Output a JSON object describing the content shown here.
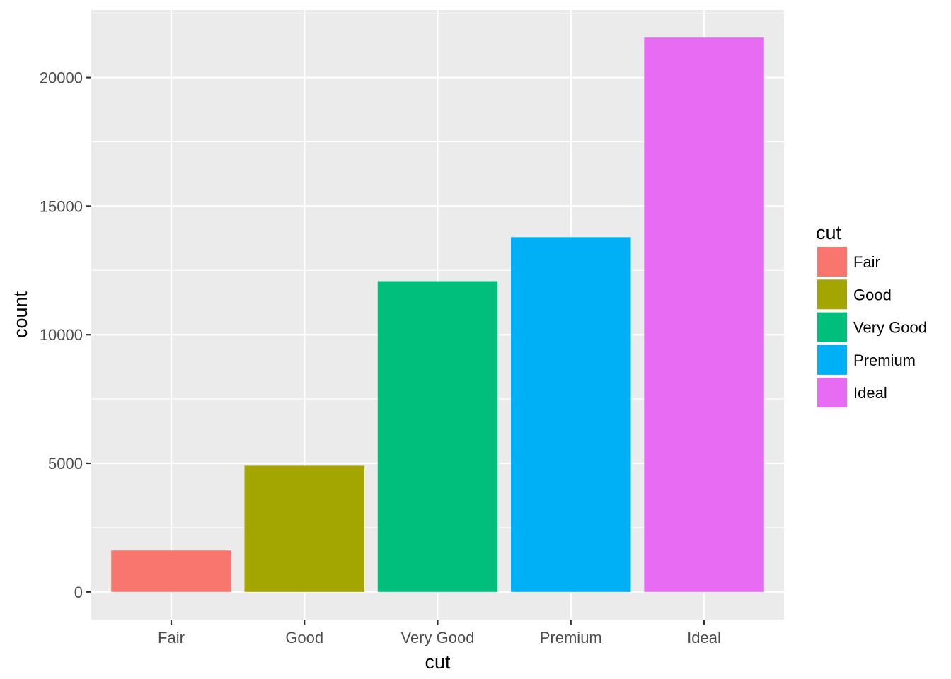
{
  "chart_data": {
    "type": "bar",
    "categories": [
      "Fair",
      "Good",
      "Very Good",
      "Premium",
      "Ideal"
    ],
    "values": [
      1610,
      4906,
      12082,
      13791,
      21551
    ],
    "xlabel": "cut",
    "ylabel": "count",
    "ylim": [
      -1078,
      22629
    ],
    "yticks": [
      0,
      5000,
      10000,
      15000,
      20000
    ],
    "ytick_labels": [
      "0",
      "5000",
      "10000",
      "15000",
      "20000"
    ],
    "grid": true,
    "panel_background": "#ebebeb",
    "grid_color": "#ffffff",
    "legend": {
      "title": "cut",
      "placement": "right",
      "items": [
        {
          "label": "Fair",
          "color": "#F8766D"
        },
        {
          "label": "Good",
          "color": "#A3A500"
        },
        {
          "label": "Very Good",
          "color": "#00BF7D"
        },
        {
          "label": "Premium",
          "color": "#00B0F6"
        },
        {
          "label": "Ideal",
          "color": "#E76BF3"
        }
      ]
    }
  }
}
